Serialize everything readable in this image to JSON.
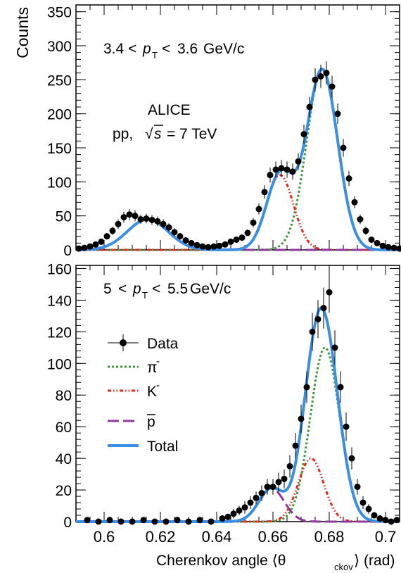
{
  "colors": {
    "data": "#000000",
    "pion": "#3c9a3c",
    "kaon": "#e8281e",
    "proton": "#8e3a9c",
    "total": "#3b8fe3"
  },
  "chart_data": [
    {
      "type": "scatter",
      "panel": "top",
      "annotation": {
        "pt_low": "3.4",
        "pt_high": "3.6",
        "unit": "GeV/c"
      },
      "experiment": {
        "name": "ALICE",
        "system": "pp,",
        "energy": "= 7 TeV"
      },
      "ylabel": "Counts",
      "xlim": [
        0.59,
        0.705
      ],
      "ylim": [
        0,
        360
      ],
      "yticks": [
        0,
        50,
        100,
        150,
        200,
        250,
        300,
        350
      ],
      "components": [
        {
          "key": "pion",
          "amp": 265,
          "mu": 0.6775,
          "sigma": 0.0055
        },
        {
          "key": "kaon",
          "amp": 110,
          "mu": 0.6625,
          "sigma": 0.0048
        },
        {
          "key": "proton",
          "amp": 45,
          "mu": 0.6155,
          "sigma": 0.0072
        }
      ],
      "data": {
        "x": [
          0.591,
          0.593,
          0.595,
          0.597,
          0.599,
          0.601,
          0.603,
          0.605,
          0.607,
          0.609,
          0.611,
          0.613,
          0.615,
          0.617,
          0.619,
          0.621,
          0.623,
          0.625,
          0.627,
          0.629,
          0.631,
          0.633,
          0.635,
          0.637,
          0.639,
          0.641,
          0.643,
          0.645,
          0.647,
          0.649,
          0.651,
          0.653,
          0.655,
          0.657,
          0.659,
          0.661,
          0.663,
          0.665,
          0.667,
          0.669,
          0.671,
          0.673,
          0.675,
          0.677,
          0.679,
          0.681,
          0.683,
          0.685,
          0.687,
          0.689,
          0.691,
          0.693,
          0.695,
          0.697,
          0.699,
          0.701,
          0.703,
          0.705
        ],
        "y": [
          2,
          3,
          5,
          8,
          12,
          20,
          28,
          38,
          48,
          52,
          50,
          45,
          46,
          44,
          42,
          38,
          33,
          26,
          20,
          14,
          10,
          7,
          5,
          4,
          5,
          6,
          8,
          12,
          15,
          18,
          25,
          40,
          60,
          85,
          110,
          118,
          120,
          118,
          115,
          130,
          170,
          210,
          250,
          255,
          260,
          240,
          200,
          150,
          105,
          70,
          45,
          28,
          15,
          10,
          6,
          4,
          3,
          2
        ],
        "err": [
          2,
          2,
          3,
          3,
          4,
          5,
          6,
          7,
          8,
          8,
          8,
          7,
          7,
          7,
          7,
          7,
          6,
          6,
          5,
          4,
          4,
          3,
          3,
          2,
          2,
          3,
          3,
          4,
          4,
          5,
          5,
          7,
          8,
          10,
          11,
          12,
          12,
          12,
          12,
          12,
          14,
          15,
          17,
          17,
          17,
          16,
          15,
          13,
          11,
          9,
          7,
          6,
          4,
          3,
          3,
          2,
          2,
          2
        ]
      }
    },
    {
      "type": "scatter",
      "panel": "bottom",
      "annotation": {
        "pt_low": "5",
        "pt_high": "5.5",
        "unit": "GeV/c"
      },
      "xlabel": "Cherenkov angle ⟨θ",
      "xlabel_sub": "ckov",
      "xlabel_end": "⟩ (rad)",
      "xlim": [
        0.59,
        0.705
      ],
      "ylim": [
        0,
        162
      ],
      "xticks": [
        "0.6",
        "0.62",
        "0.64",
        "0.66",
        "0.68",
        "0.7"
      ],
      "yticks": [
        0,
        20,
        40,
        60,
        80,
        100,
        120,
        140,
        160
      ],
      "components": [
        {
          "key": "pion",
          "amp": 110,
          "mu": 0.6785,
          "sigma": 0.0052
        },
        {
          "key": "kaon",
          "amp": 40,
          "mu": 0.6735,
          "sigma": 0.0045
        },
        {
          "key": "proton",
          "amp": 21,
          "mu": 0.6595,
          "sigma": 0.0045
        }
      ],
      "data": {
        "x": [
          0.594,
          0.598,
          0.602,
          0.606,
          0.61,
          0.614,
          0.618,
          0.622,
          0.626,
          0.63,
          0.634,
          0.638,
          0.642,
          0.644,
          0.646,
          0.648,
          0.65,
          0.652,
          0.654,
          0.656,
          0.658,
          0.66,
          0.662,
          0.664,
          0.666,
          0.668,
          0.67,
          0.672,
          0.674,
          0.676,
          0.678,
          0.68,
          0.682,
          0.684,
          0.686,
          0.688,
          0.69,
          0.692,
          0.694,
          0.696,
          0.698,
          0.7,
          0.702,
          0.704
        ],
        "y": [
          1,
          0,
          1,
          0,
          0,
          1,
          0,
          0,
          1,
          0,
          1,
          0,
          2,
          3,
          5,
          7,
          9,
          12,
          15,
          18,
          22,
          22,
          25,
          27,
          35,
          48,
          65,
          85,
          120,
          128,
          135,
          145,
          110,
          85,
          60,
          40,
          22,
          12,
          8,
          4,
          2,
          1,
          0,
          1
        ],
        "err": [
          1,
          1,
          1,
          1,
          1,
          1,
          1,
          1,
          1,
          1,
          1,
          1,
          2,
          2,
          3,
          3,
          4,
          4,
          4,
          5,
          5,
          5,
          6,
          6,
          7,
          8,
          9,
          10,
          12,
          12,
          13,
          13,
          11,
          10,
          9,
          7,
          5,
          4,
          3,
          2,
          2,
          1,
          1,
          1
        ]
      },
      "legend": [
        {
          "key": "data",
          "label": "Data"
        },
        {
          "key": "pion",
          "label": "π",
          "sup": "-"
        },
        {
          "key": "kaon",
          "label": "K",
          "sup": "-"
        },
        {
          "key": "proton",
          "label": "p",
          "overline": true
        },
        {
          "key": "total",
          "label": "Total"
        }
      ]
    }
  ]
}
